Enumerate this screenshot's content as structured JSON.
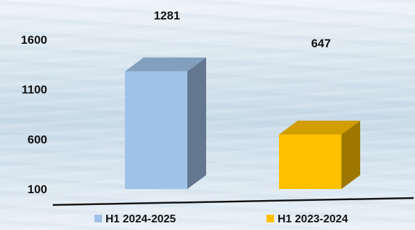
{
  "chart_data": {
    "type": "bar",
    "categories": [
      "H1 2024-2025",
      "H1 2023-2024"
    ],
    "series": [
      {
        "values": [
          1281,
          647
        ],
        "colors": [
          "#9fc2e8",
          "#ffc000"
        ]
      }
    ],
    "data_labels": [
      "1281",
      "647"
    ],
    "y_ticks": [
      "100",
      "600",
      "1100",
      "1600"
    ],
    "y_tick_values": [
      100,
      600,
      1100,
      1600
    ],
    "ylim": [
      100,
      1600
    ],
    "legend": {
      "position": "bottom",
      "items": [
        {
          "label": "H1 2024-2025",
          "color": "#9fc2e8"
        },
        {
          "label": "H1 2023-2024",
          "color": "#ffc000"
        }
      ]
    },
    "bars_3d": true,
    "grid": false
  }
}
